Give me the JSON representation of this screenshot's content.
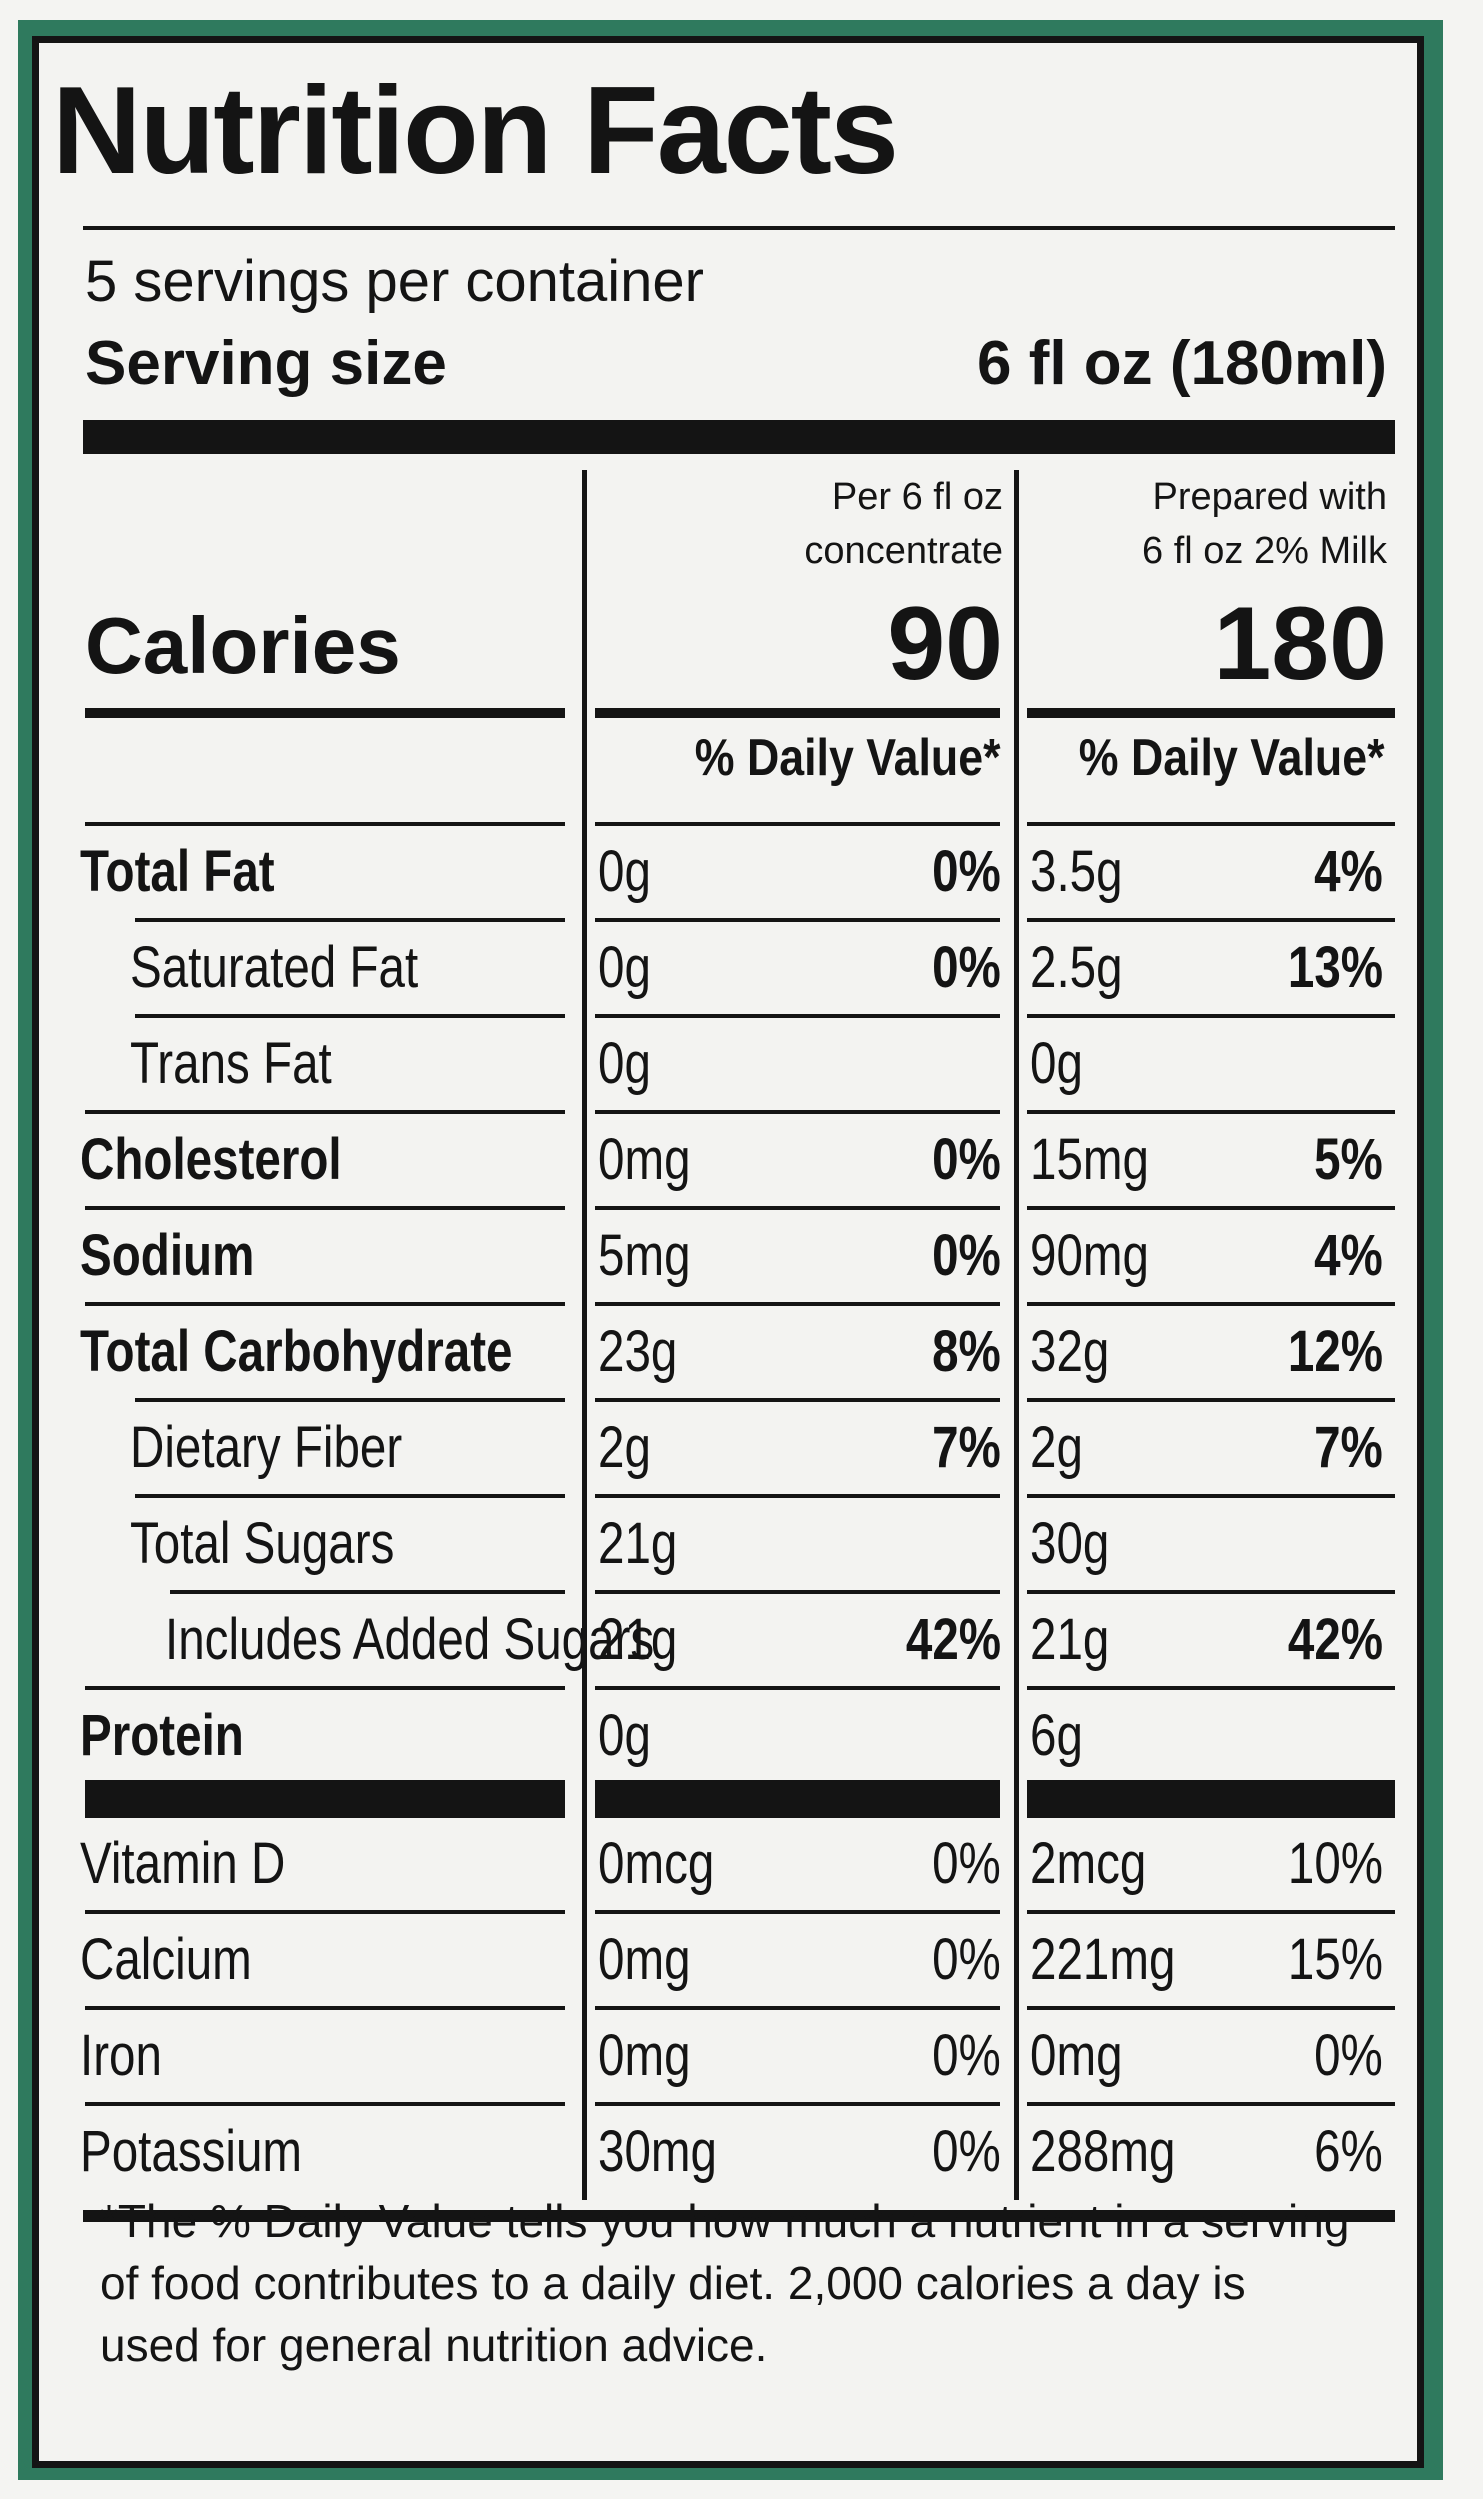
{
  "title": "Nutrition Facts",
  "servings_per_container": "5 servings per container",
  "serving_size": {
    "label": "Serving size",
    "value": "6 fl oz (180ml)"
  },
  "columns": [
    {
      "line1": "Per 6 fl oz",
      "line2": "concentrate",
      "calories": "90",
      "dv_header": "% Daily Value*"
    },
    {
      "line1": "Prepared with",
      "line2": "6 fl oz 2% Milk",
      "calories": "180",
      "dv_header": "% Daily Value*"
    }
  ],
  "calories_label": "Calories",
  "nutrients": [
    {
      "label": "Total Fat",
      "bold": true,
      "indent": 0,
      "c1_amt": "0g",
      "c1_pct": "0%",
      "c2_amt": "3.5g",
      "c2_pct": "4%"
    },
    {
      "label": "Saturated Fat",
      "bold": false,
      "indent": 1,
      "c1_amt": "0g",
      "c1_pct": "0%",
      "c2_amt": "2.5g",
      "c2_pct": "13%"
    },
    {
      "label": "Trans Fat",
      "bold": false,
      "indent": 1,
      "c1_amt": "0g",
      "c1_pct": "",
      "c2_amt": "0g",
      "c2_pct": ""
    },
    {
      "label": "Cholesterol",
      "bold": true,
      "indent": 0,
      "c1_amt": "0mg",
      "c1_pct": "0%",
      "c2_amt": "15mg",
      "c2_pct": "5%"
    },
    {
      "label": "Sodium",
      "bold": true,
      "indent": 0,
      "c1_amt": "5mg",
      "c1_pct": "0%",
      "c2_amt": "90mg",
      "c2_pct": "4%"
    },
    {
      "label": "Total Carbohydrate",
      "bold": true,
      "indent": 0,
      "c1_amt": "23g",
      "c1_pct": "8%",
      "c2_amt": "32g",
      "c2_pct": "12%"
    },
    {
      "label": "Dietary Fiber",
      "bold": false,
      "indent": 1,
      "c1_amt": "2g",
      "c1_pct": "7%",
      "c2_amt": "2g",
      "c2_pct": "7%"
    },
    {
      "label": "Total Sugars",
      "bold": false,
      "indent": 1,
      "c1_amt": "21g",
      "c1_pct": "",
      "c2_amt": "30g",
      "c2_pct": ""
    },
    {
      "label": "Includes Added Sugars",
      "bold": false,
      "indent": 2,
      "c1_amt": "21g",
      "c1_pct": "42%",
      "c2_amt": "21g",
      "c2_pct": "42%"
    },
    {
      "label": "Protein",
      "bold": true,
      "indent": 0,
      "c1_amt": "0g",
      "c1_pct": "",
      "c2_amt": "6g",
      "c2_pct": ""
    }
  ],
  "vitamins": [
    {
      "label": "Vitamin D",
      "c1_amt": "0mcg",
      "c1_pct": "0%",
      "c2_amt": "2mcg",
      "c2_pct": "10%"
    },
    {
      "label": "Calcium",
      "c1_amt": "0mg",
      "c1_pct": "0%",
      "c2_amt": "221mg",
      "c2_pct": "15%"
    },
    {
      "label": "Iron",
      "c1_amt": "0mg",
      "c1_pct": "0%",
      "c2_amt": "0mg",
      "c2_pct": "0%"
    },
    {
      "label": "Potassium",
      "c1_amt": "30mg",
      "c1_pct": "0%",
      "c2_amt": "288mg",
      "c2_pct": "6%"
    }
  ],
  "footnote": "*The % Daily Value tells you how much a nutrient in a serving of food contributes to a daily diet. 2,000 calories a day is used for general nutrition advice.",
  "colors": {
    "border_green": "#2f7a5e",
    "ink": "#141414",
    "label_bg": "#f3f3f1"
  }
}
